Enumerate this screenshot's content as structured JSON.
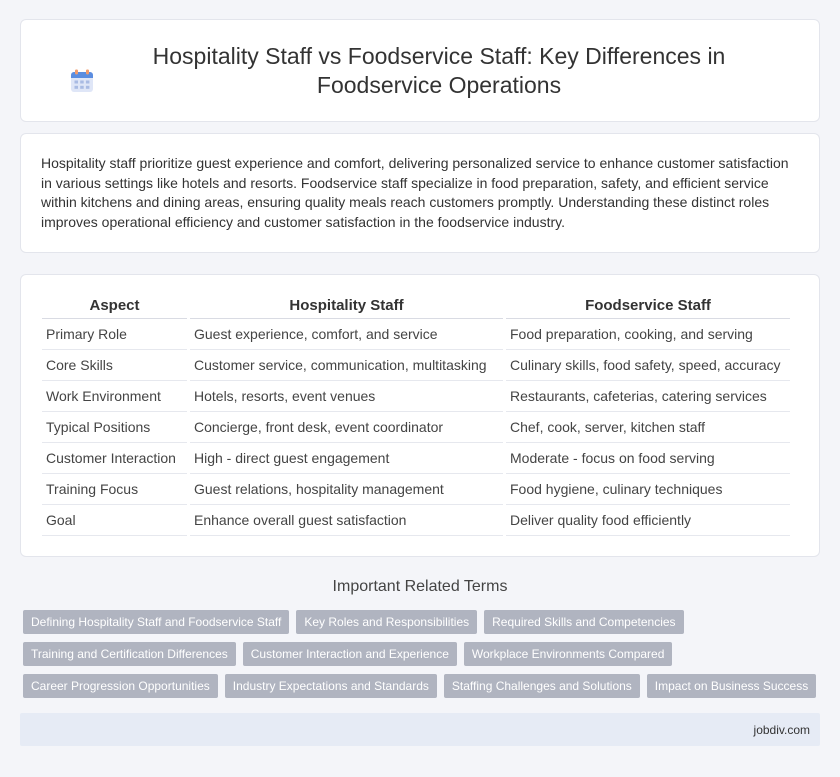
{
  "header": {
    "title": "Hospitality Staff vs Foodservice Staff: Key Differences in Foodservice Operations",
    "icon": "calendar-icon"
  },
  "intro": {
    "text": "Hospitality staff prioritize guest experience and comfort, delivering personalized service to enhance customer satisfaction in various settings like hotels and resorts. Foodservice staff specialize in food preparation, safety, and efficient service within kitchens and dining areas, ensuring quality meals reach customers promptly. Understanding these distinct roles improves operational efficiency and customer satisfaction in the foodservice industry."
  },
  "table": {
    "headers": [
      "Aspect",
      "Hospitality Staff",
      "Foodservice Staff"
    ],
    "rows": [
      [
        "Primary Role",
        "Guest experience, comfort, and service",
        "Food preparation, cooking, and serving"
      ],
      [
        "Core Skills",
        "Customer service, communication, multitasking",
        "Culinary skills, food safety, speed, accuracy"
      ],
      [
        "Work Environment",
        "Hotels, resorts, event venues",
        "Restaurants, cafeterias, catering services"
      ],
      [
        "Typical Positions",
        "Concierge, front desk, event coordinator",
        "Chef, cook, server, kitchen staff"
      ],
      [
        "Customer Interaction",
        "High - direct guest engagement",
        "Moderate - focus on food serving"
      ],
      [
        "Training Focus",
        "Guest relations, hospitality management",
        "Food hygiene, culinary techniques"
      ],
      [
        "Goal",
        "Enhance overall guest satisfaction",
        "Deliver quality food efficiently"
      ]
    ]
  },
  "related": {
    "heading": "Important Related Terms",
    "rows": [
      [
        "Defining Hospitality Staff and Foodservice Staff",
        "Key Roles and Responsibilities",
        "Required Skills and Competencies"
      ],
      [
        "Training and Certification Differences",
        "Customer Interaction and Experience",
        "Workplace Environments Compared"
      ],
      [
        "Career Progression Opportunities",
        "Industry Expectations and Standards",
        "Staffing Challenges and Solutions",
        "Impact on Business Success"
      ]
    ]
  },
  "footer": {
    "text": "jobdiv.com"
  },
  "colors": {
    "tag_bg": "#b0b4c0",
    "footer_bg": "#e6ebf5",
    "page_bg": "#f4f5f9"
  }
}
